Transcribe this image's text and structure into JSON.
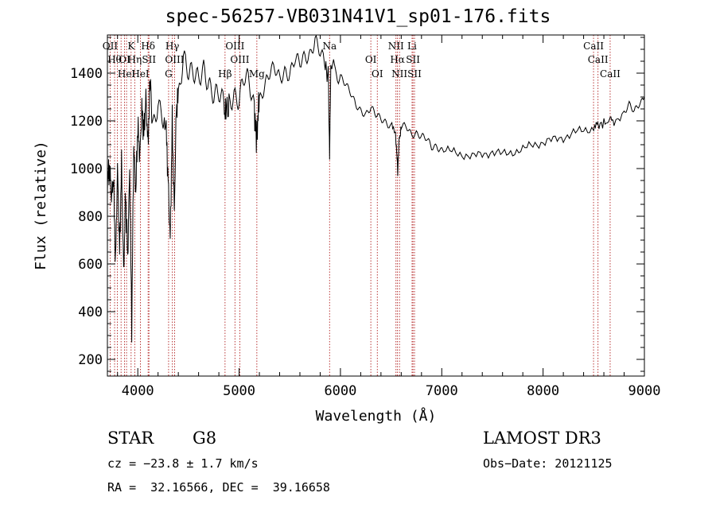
{
  "chart_data": {
    "type": "line",
    "title": "spec-56257-VB031N41V1_sp01-176.fits",
    "xlabel": "Wavelength (Å)",
    "ylabel": "Flux (relative)",
    "xlim": [
      3700,
      9000
    ],
    "ylim": [
      130,
      1560
    ],
    "xticks": [
      4000,
      5000,
      6000,
      7000,
      8000,
      9000
    ],
    "yticks": [
      200,
      400,
      600,
      800,
      1000,
      1200,
      1400
    ],
    "series": [
      {
        "name": "flux",
        "x": [
          3700,
          3720,
          3740,
          3760,
          3780,
          3800,
          3820,
          3840,
          3860,
          3880,
          3900,
          3920,
          3940,
          3960,
          3980,
          4000,
          4020,
          4040,
          4060,
          4080,
          4100,
          4120,
          4150,
          4200,
          4250,
          4280,
          4300,
          4320,
          4340,
          4360,
          4380,
          4400,
          4450,
          4500,
          4550,
          4600,
          4650,
          4700,
          4750,
          4800,
          4850,
          4870,
          4900,
          4950,
          5000,
          5050,
          5100,
          5150,
          5170,
          5180,
          5200,
          5250,
          5300,
          5350,
          5400,
          5450,
          5500,
          5550,
          5600,
          5650,
          5700,
          5750,
          5800,
          5850,
          5880,
          5893,
          5905,
          5950,
          6000,
          6050,
          6100,
          6150,
          6200,
          6250,
          6300,
          6350,
          6400,
          6450,
          6500,
          6540,
          6555,
          6565,
          6580,
          6600,
          6650,
          6700,
          6750,
          6800,
          6850,
          6900,
          6950,
          7000,
          7100,
          7200,
          7300,
          7400,
          7500,
          7600,
          7700,
          7800,
          7900,
          8000,
          8100,
          8200,
          8300,
          8400,
          8500,
          8540,
          8600,
          8662,
          8700,
          8800,
          8850,
          8900,
          8950,
          9000
        ],
        "values": [
          950,
          1000,
          880,
          960,
          600,
          1000,
          650,
          1020,
          560,
          900,
          620,
          1000,
          340,
          1100,
          900,
          1180,
          1050,
          1250,
          1150,
          1300,
          1100,
          1350,
          1180,
          1300,
          1220,
          1150,
          950,
          700,
          1200,
          820,
          1250,
          1300,
          1500,
          1420,
          1380,
          1350,
          1420,
          1380,
          1320,
          1300,
          1250,
          1230,
          1280,
          1330,
          1300,
          1370,
          1340,
          1250,
          1120,
          1180,
          1300,
          1350,
          1390,
          1410,
          1380,
          1420,
          1400,
          1450,
          1430,
          1470,
          1490,
          1550,
          1480,
          1420,
          1400,
          1050,
          1420,
          1410,
          1390,
          1350,
          1310,
          1270,
          1250,
          1230,
          1250,
          1220,
          1210,
          1200,
          1180,
          1160,
          1080,
          990,
          1120,
          1170,
          1180,
          1150,
          1150,
          1130,
          1120,
          1090,
          1100,
          1080,
          1070,
          1060,
          1050,
          1060,
          1070,
          1060,
          1070,
          1080,
          1100,
          1110,
          1120,
          1130,
          1150,
          1160,
          1170,
          1180,
          1190,
          1200,
          1200,
          1230,
          1260,
          1240,
          1280,
          1300
        ]
      }
    ],
    "lines": [
      {
        "x": 3727,
        "label": "OII"
      },
      {
        "x": 3771,
        "label": "Hθ"
      },
      {
        "x": 3798,
        "label": ""
      },
      {
        "x": 3835,
        "label": ""
      },
      {
        "x": 3869,
        "label": "OI"
      },
      {
        "x": 3889,
        "label": "HeI"
      },
      {
        "x": 3934,
        "label": "K"
      },
      {
        "x": 3970,
        "label": "Hη"
      },
      {
        "x": 4026,
        "label": "HeI"
      },
      {
        "x": 4102,
        "label": "Hδ"
      },
      {
        "x": 4110,
        "label": "SII"
      },
      {
        "x": 4304,
        "label": "G"
      },
      {
        "x": 4341,
        "label": "Hγ"
      },
      {
        "x": 4363,
        "label": "OIII"
      },
      {
        "x": 4861,
        "label": "Hβ"
      },
      {
        "x": 4959,
        "label": "OIII"
      },
      {
        "x": 5007,
        "label": "OIII"
      },
      {
        "x": 5175,
        "label": "Mg"
      },
      {
        "x": 5893,
        "label": "Na"
      },
      {
        "x": 6300,
        "label": "OI"
      },
      {
        "x": 6364,
        "label": "OI"
      },
      {
        "x": 6548,
        "label": "NII"
      },
      {
        "x": 6563,
        "label": "Hα"
      },
      {
        "x": 6583,
        "label": "NII"
      },
      {
        "x": 6707,
        "label": "Li"
      },
      {
        "x": 6716,
        "label": "SII"
      },
      {
        "x": 6731,
        "label": "SII"
      },
      {
        "x": 8498,
        "label": "CaII"
      },
      {
        "x": 8542,
        "label": "CaII"
      },
      {
        "x": 8662,
        "label": "CaII"
      }
    ]
  },
  "info": {
    "object": "STAR",
    "subclass": "G8",
    "survey": "LAMOST DR3",
    "cz": "cz = −23.8 ± 1.7 km/s",
    "obs_date": "Obs−Date: 20121125",
    "coords": "RA =  32.16566, DEC =  39.16658"
  }
}
